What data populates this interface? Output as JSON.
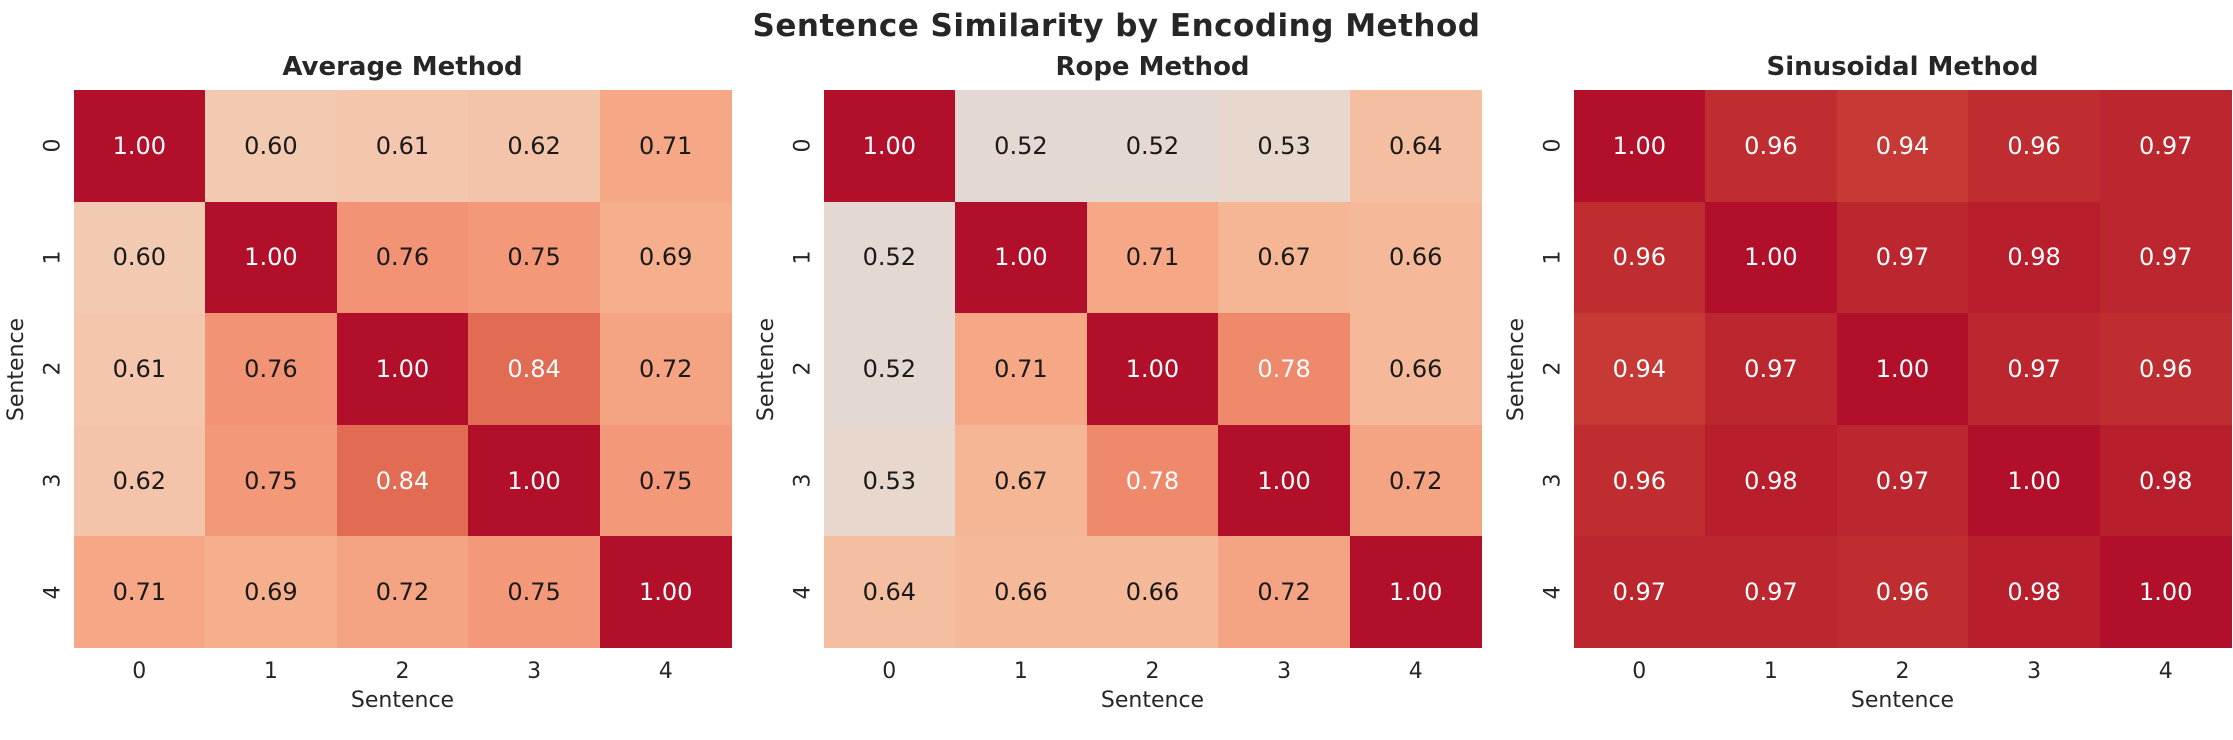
{
  "figure": {
    "title": "Sentence Similarity by Encoding Method",
    "background": "#ffffff",
    "text_color": "#262626"
  },
  "colormap": {
    "name": "coolwarm",
    "vmin": 0.0,
    "vmax": 1.0,
    "stops": [
      [
        0.5,
        "#dddcdb"
      ],
      [
        0.55,
        "#eed3c4"
      ],
      [
        0.6,
        "#f2c9b1"
      ],
      [
        0.65,
        "#f5bc9d"
      ],
      [
        0.7,
        "#f6ac89"
      ],
      [
        0.75,
        "#f4987a"
      ],
      [
        0.8,
        "#ec7f62"
      ],
      [
        0.85,
        "#e0674f"
      ],
      [
        0.9,
        "#d24b40"
      ],
      [
        0.95,
        "#c33431"
      ],
      [
        1.0,
        "#b2102a"
      ]
    ],
    "annotation_dark": "#1a1a1a",
    "annotation_light": "#ffffff",
    "white_text_threshold": 0.77
  },
  "chart_data": [
    {
      "type": "heatmap",
      "title": "Average Method",
      "xlabel": "Sentence",
      "ylabel": "Sentence",
      "x_ticks": [
        "0",
        "1",
        "2",
        "3",
        "4"
      ],
      "y_ticks": [
        "0",
        "1",
        "2",
        "3",
        "4"
      ],
      "annotation_format": "two_decimals",
      "values": [
        [
          1.0,
          0.6,
          0.61,
          0.62,
          0.71
        ],
        [
          0.6,
          1.0,
          0.76,
          0.75,
          0.69
        ],
        [
          0.61,
          0.76,
          1.0,
          0.84,
          0.72
        ],
        [
          0.62,
          0.75,
          0.84,
          1.0,
          0.75
        ],
        [
          0.71,
          0.69,
          0.72,
          0.75,
          1.0
        ]
      ]
    },
    {
      "type": "heatmap",
      "title": "Rope Method",
      "xlabel": "Sentence",
      "ylabel": "Sentence",
      "x_ticks": [
        "0",
        "1",
        "2",
        "3",
        "4"
      ],
      "y_ticks": [
        "0",
        "1",
        "2",
        "3",
        "4"
      ],
      "annotation_format": "two_decimals",
      "values": [
        [
          1.0,
          0.52,
          0.52,
          0.53,
          0.64
        ],
        [
          0.52,
          1.0,
          0.71,
          0.67,
          0.66
        ],
        [
          0.52,
          0.71,
          1.0,
          0.78,
          0.66
        ],
        [
          0.53,
          0.67,
          0.78,
          1.0,
          0.72
        ],
        [
          0.64,
          0.66,
          0.66,
          0.72,
          1.0
        ]
      ]
    },
    {
      "type": "heatmap",
      "title": "Sinusoidal Method",
      "xlabel": "Sentence",
      "ylabel": "Sentence",
      "x_ticks": [
        "0",
        "1",
        "2",
        "3",
        "4"
      ],
      "y_ticks": [
        "0",
        "1",
        "2",
        "3",
        "4"
      ],
      "annotation_format": "two_decimals",
      "values": [
        [
          1.0,
          0.96,
          0.94,
          0.96,
          0.97
        ],
        [
          0.96,
          1.0,
          0.97,
          0.98,
          0.97
        ],
        [
          0.94,
          0.97,
          1.0,
          0.97,
          0.96
        ],
        [
          0.96,
          0.98,
          0.97,
          1.0,
          0.98
        ],
        [
          0.97,
          0.97,
          0.96,
          0.98,
          1.0
        ]
      ]
    }
  ]
}
